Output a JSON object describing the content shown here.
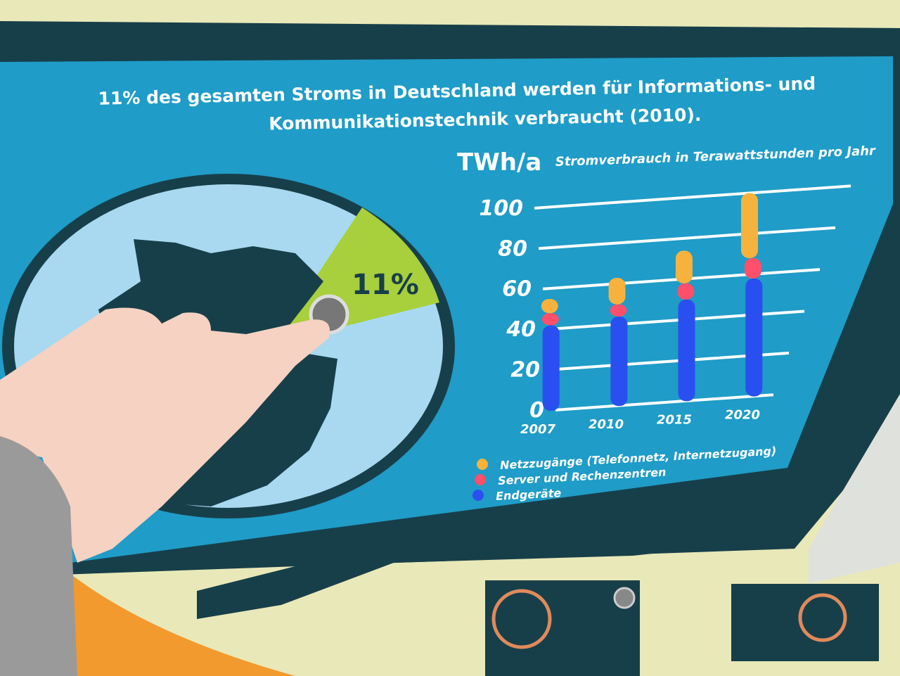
{
  "panel": {
    "headline_line1": "11% des gesamten Stroms in Deutschland werden für Informations- und",
    "headline_line2": "Kommunikationstechnik verbraucht (2010).",
    "pie_label": "11%",
    "colors": {
      "frame": "#173f4a",
      "panel": "#1f9cc7",
      "pie_slice": "#a8cf3c",
      "pie_rest": "#a9d9f0",
      "map": "#173f4a",
      "background": "#e9e8b8"
    }
  },
  "chart_data": {
    "type": "bar",
    "stacked": true,
    "unit_label": "TWh/a",
    "title": "Stromverbrauch in Terawattstunden pro Jahr",
    "categories": [
      "2007",
      "2010",
      "2015",
      "2020"
    ],
    "yticks": [
      "0",
      "20",
      "40",
      "60",
      "80",
      "100"
    ],
    "ylim": [
      0,
      100
    ],
    "grid": true,
    "legend_placement": "bottom-left",
    "series": [
      {
        "name": "Endgeräte",
        "color": "#2a4ff0",
        "values": [
          42,
          44,
          50,
          58
        ]
      },
      {
        "name": "Server und Rechenzentren",
        "color": "#ff4f6a",
        "values": [
          6,
          6,
          8,
          10
        ]
      },
      {
        "name": "Netzzugänge (Telefonnetz, Internetzugang)",
        "color": "#f6b23c",
        "values": [
          7,
          13,
          16,
          32
        ]
      }
    ]
  }
}
